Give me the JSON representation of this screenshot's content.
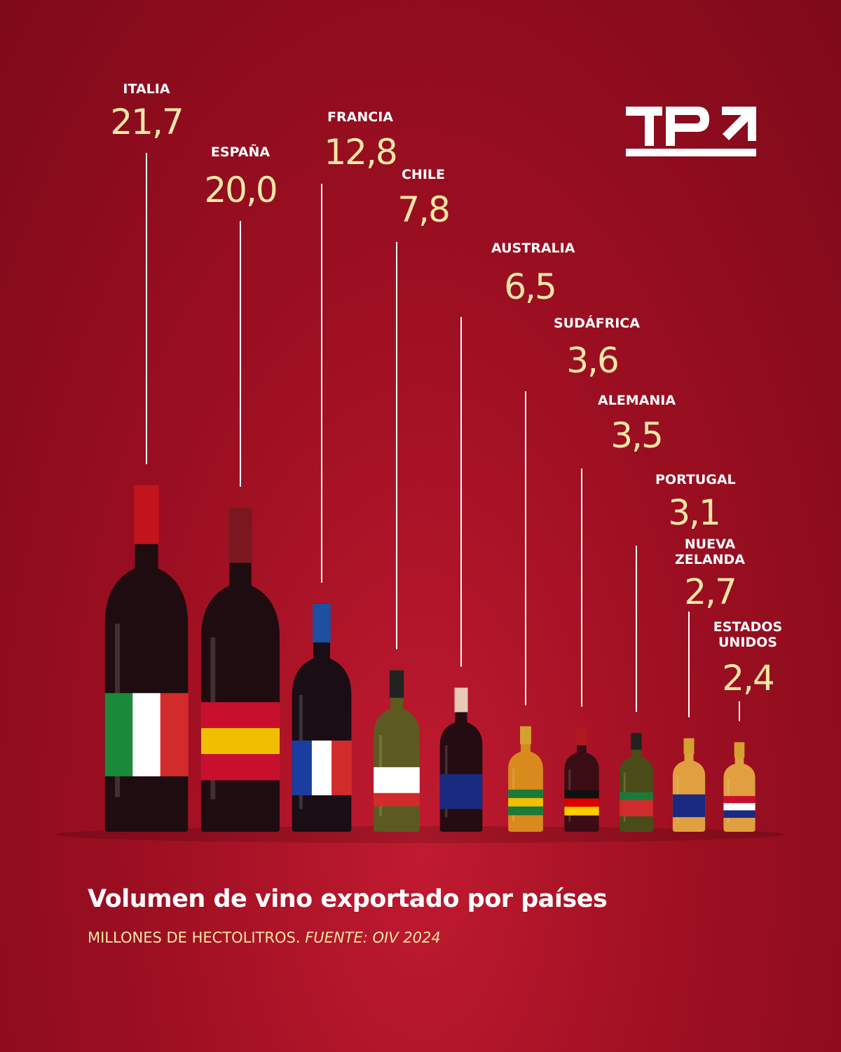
{
  "chart_data": {
    "type": "bottle",
    "title": "Volumen de vino exportado por países",
    "subtitle": "MILLONES DE HECTOLITROS.",
    "source": "FUENTE: OIV 2024",
    "categories": [
      "ITALIA",
      "ESPAÑA",
      "FRANCIA",
      "CHILE",
      "AUSTRALIA",
      "SUDÁFRICA",
      "ALEMANIA",
      "PORTUGAL",
      "NUEVA ZELANDA",
      "ESTADOS UNIDOS"
    ],
    "values": [
      21.7,
      20.0,
      12.8,
      7.8,
      6.5,
      3.6,
      3.5,
      3.1,
      2.7,
      2.4
    ],
    "value_labels": [
      "21,7",
      "20,0",
      "12,8",
      "7,8",
      "6,5",
      "3,6",
      "3,5",
      "3,1",
      "2,7",
      "2,4"
    ]
  }
}
